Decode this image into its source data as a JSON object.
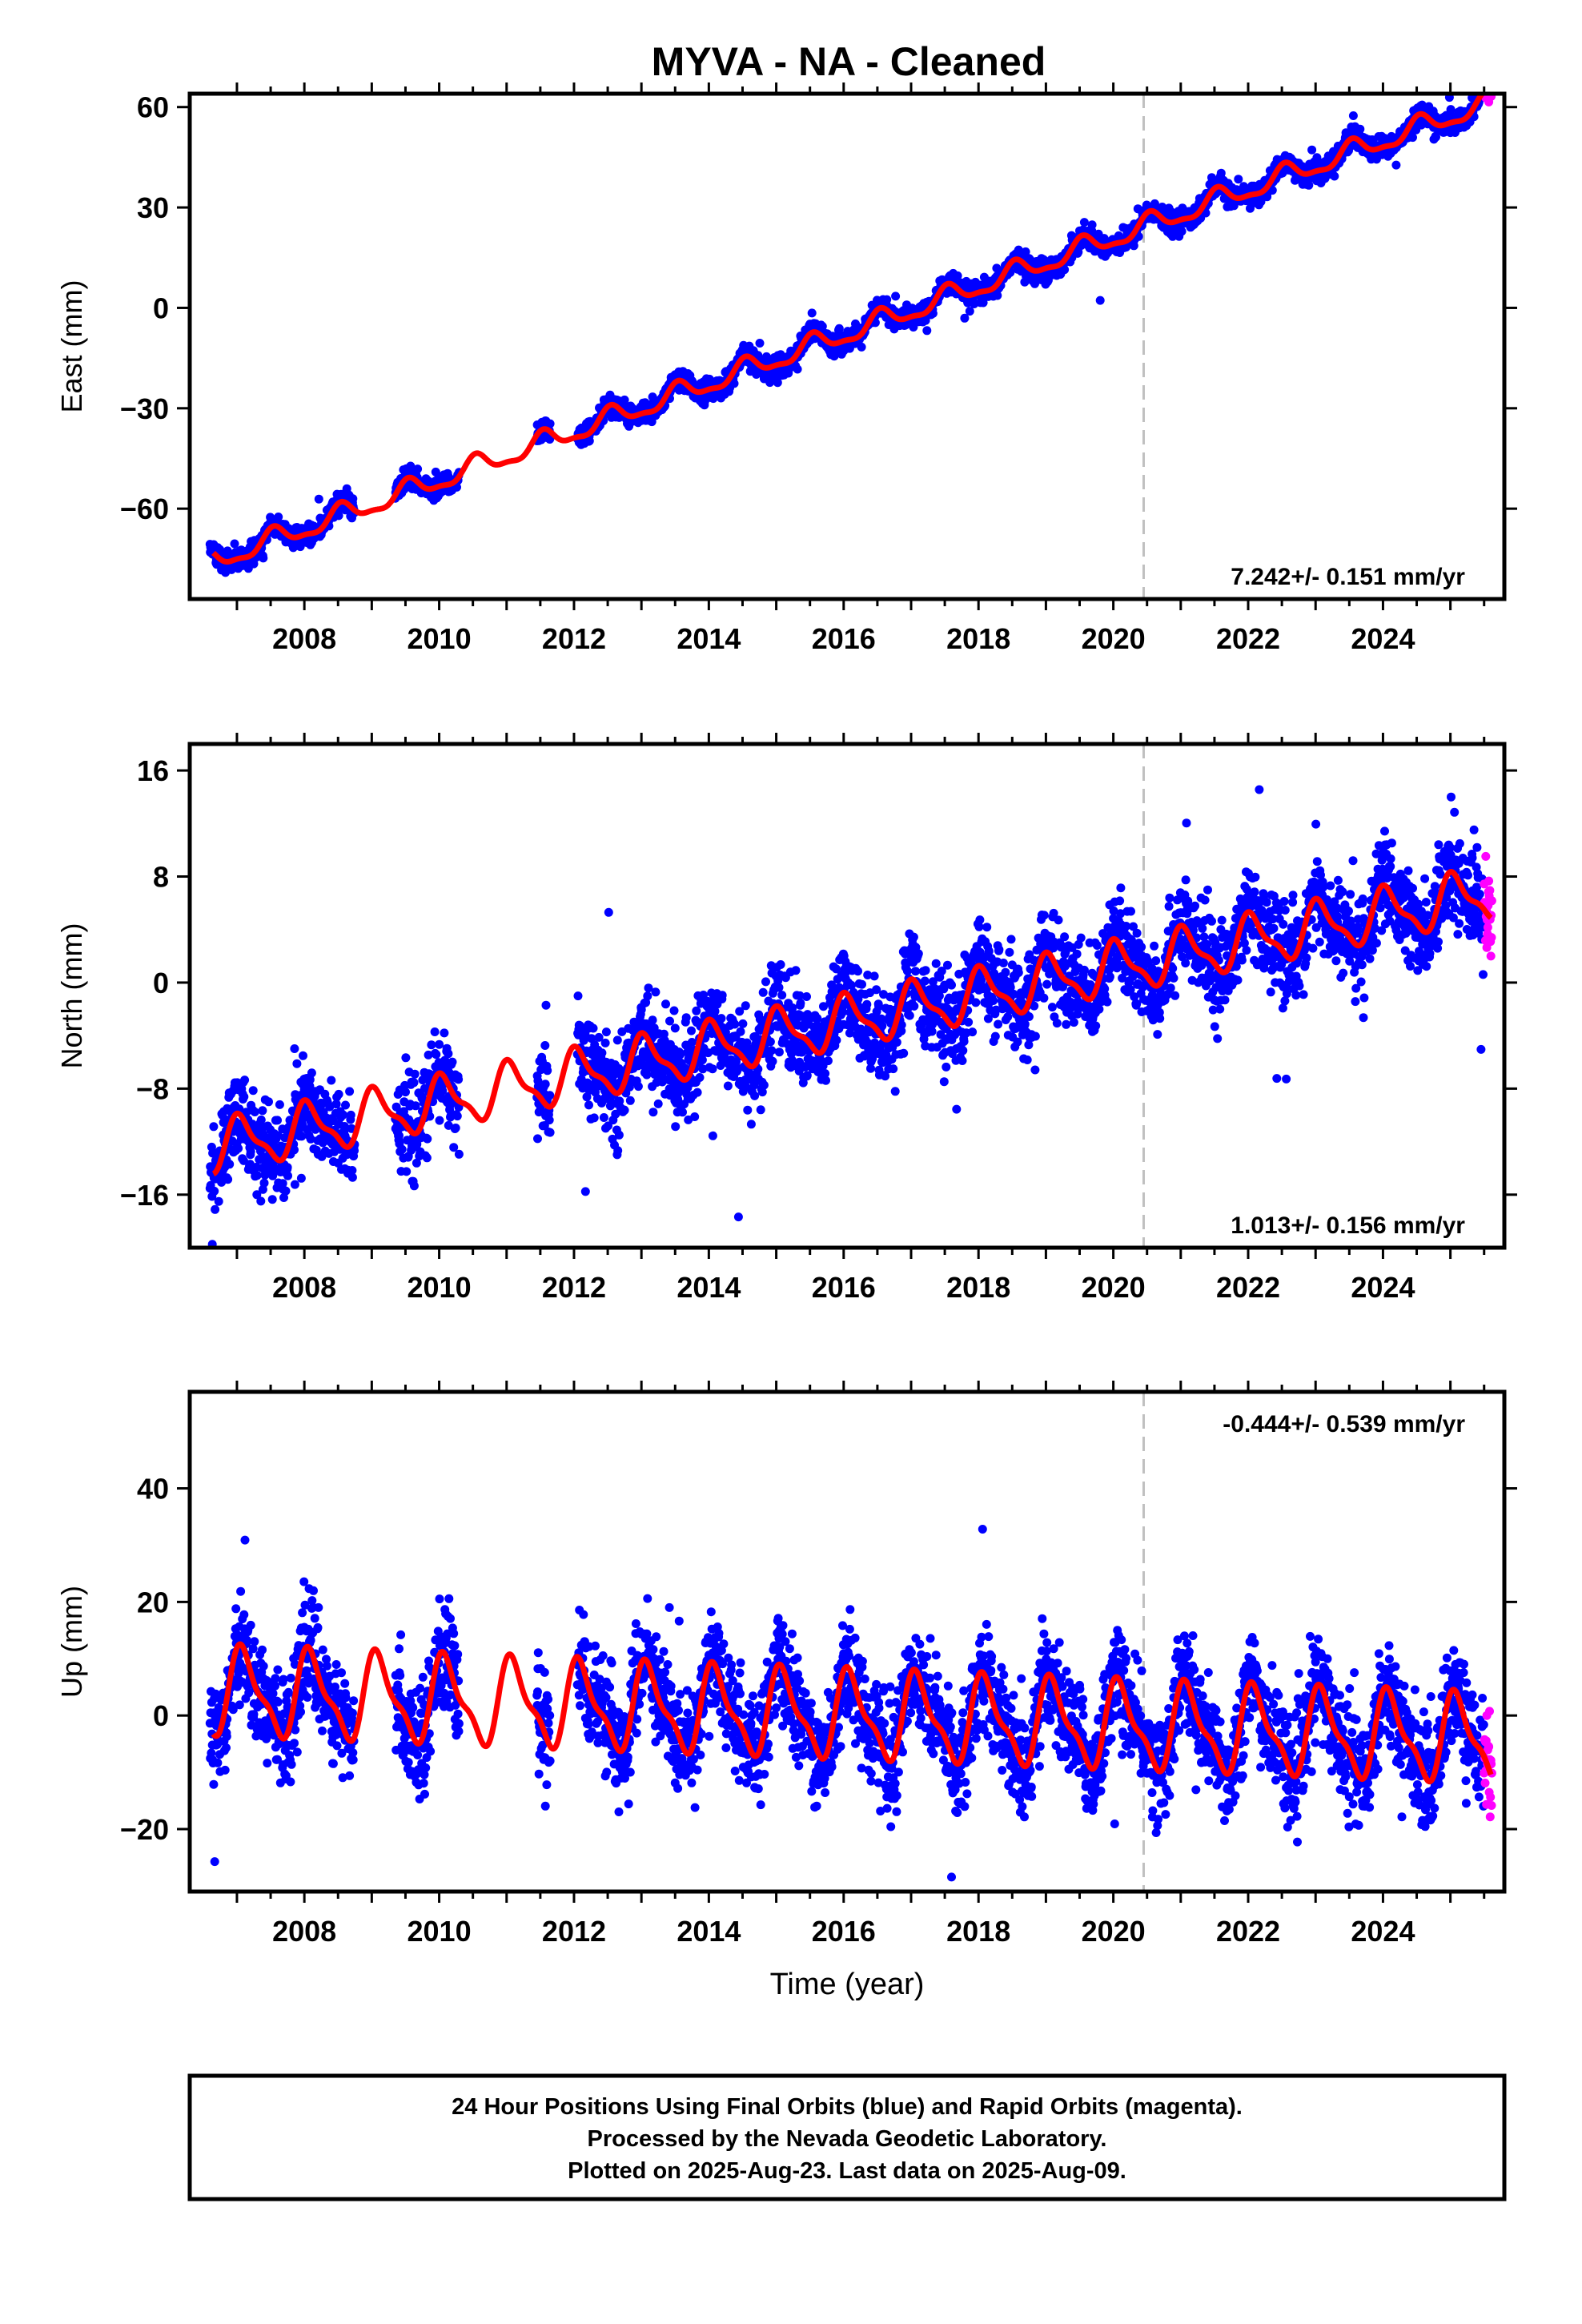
{
  "chart_data": {
    "type": "scatter",
    "title": "MYVA  - NA - Cleaned",
    "xlabel": "Time (year)",
    "xlim": [
      2006.3,
      2025.8
    ],
    "x_ticks": [
      2008,
      2010,
      2012,
      2014,
      2016,
      2018,
      2020,
      2022,
      2024
    ],
    "x_ticklabels": [
      "2008",
      "2010",
      "2012",
      "2014",
      "2016",
      "2018",
      "2020",
      "2022",
      "2024"
    ],
    "vertical_marker_year": 2020.45,
    "colors": {
      "final_orbits": "#0000ff",
      "rapid_orbits": "#ff00ff",
      "model_fit": "#ff0000",
      "marker_line": "#c0c0c0"
    },
    "panels": [
      {
        "id": "east",
        "ylabel": "East (mm)",
        "ylim": [
          -87,
          64
        ],
        "y_ticks": [
          60,
          30,
          0,
          -30,
          -60
        ],
        "y_ticklabels": [
          "60",
          "30",
          "0",
          "−30",
          "−60"
        ],
        "rate_label": "7.242+/- 0.151 mm/yr",
        "rate_position": "bottom-right",
        "model": {
          "rate": 7.242,
          "year0": 2016.0,
          "offset": -8.0,
          "annual_amplitude": 3.0,
          "annual_phase": 4.4
        },
        "noise_sd": 1.6
      },
      {
        "id": "north",
        "ylabel": "North (mm)",
        "ylim": [
          -20,
          18
        ],
        "y_ticks": [
          16,
          8,
          0,
          -8,
          -16
        ],
        "y_ticklabels": [
          "16",
          "8",
          "0",
          "−8",
          "−16"
        ],
        "rate_label": "1.013+/- 0.156 mm/yr",
        "rate_position": "bottom-right",
        "model": {
          "rate": 1.013,
          "year0": 2016.0,
          "offset": -3.0,
          "annual_amplitude": 1.8,
          "annual_phase": 1.2
        },
        "noise_sd": 1.7
      },
      {
        "id": "up",
        "ylabel": "Up (mm)",
        "ylim": [
          -31,
          57
        ],
        "y_ticks": [
          40,
          20,
          0,
          -20
        ],
        "y_ticklabels": [
          "40",
          "20",
          "0",
          "−20"
        ],
        "rate_label": "-0.444+/- 0.539 mm/yr",
        "rate_position": "top-right",
        "model": {
          "rate": -0.444,
          "year0": 2016.0,
          "offset": 0.0,
          "annual_amplitude": 7.0,
          "annual_phase": 0.9
        },
        "noise_sd": 4.5
      }
    ],
    "data_coverage": [
      [
        2006.6,
        2008.75
      ],
      [
        2009.35,
        2010.3
      ],
      [
        2011.45,
        2011.65
      ],
      [
        2012.05,
        2025.5
      ]
    ],
    "rapid_orbit_span": [
      2025.5,
      2025.62
    ]
  },
  "footer": {
    "line1": "24 Hour Positions Using Final Orbits (blue) and Rapid Orbits (magenta).",
    "line2": "Processed by the Nevada Geodetic Laboratory.",
    "line3": "Plotted on 2025-Aug-23. Last data on 2025-Aug-09."
  }
}
